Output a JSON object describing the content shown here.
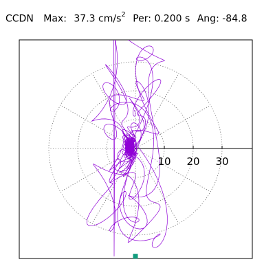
{
  "header": {
    "station": "CCDN",
    "max_label": "Max:",
    "max_value": "37.3",
    "max_unit_base": "cm/s",
    "max_unit_exp": "2",
    "per_label": "Per:",
    "per_value": "0.200 s",
    "ang_label": "Ang:",
    "ang_value": "-84.8"
  },
  "chart_data": {
    "type": "polar-line",
    "title": "",
    "rings": [
      10,
      20,
      30
    ],
    "tick_labels": [
      "10",
      "20",
      "30"
    ],
    "grid": "dotted",
    "trace_color": "#8f00d6",
    "marker_color": "#129d7e",
    "marker_point": {
      "x": 0,
      "y": -37.3
    },
    "peak_value": 37.3,
    "peak_angle_deg": -84.8
  }
}
